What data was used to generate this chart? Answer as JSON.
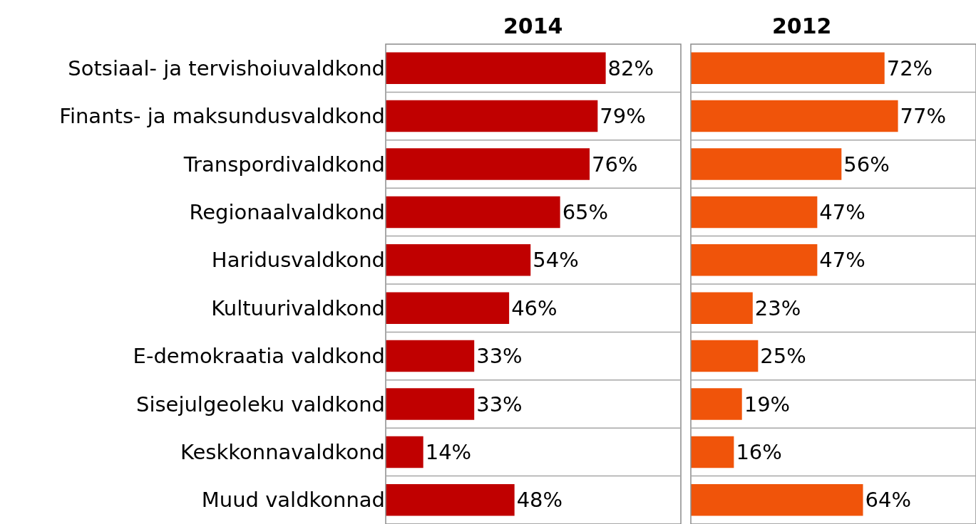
{
  "chart_data": [
    {
      "type": "bar",
      "orientation": "horizontal",
      "title": "2014",
      "categories": [
        "Sotsiaal- ja tervishoiuvaldkond",
        "Finants- ja maksundusvaldkond",
        "Transpordivaldkond",
        "Regionaalvaldkond",
        "Haridusvaldkond",
        "Kultuurivaldkond",
        "E-demokraatia valdkond",
        "Sisejulgeoleku valdkond",
        "Keskkonnavaldkond",
        "Muud valdkonnad"
      ],
      "values": [
        82,
        79,
        76,
        65,
        54,
        46,
        33,
        33,
        14,
        48
      ],
      "value_labels": [
        "82%",
        "79%",
        "76%",
        "65%",
        "54%",
        "46%",
        "33%",
        "33%",
        "14%",
        "48%"
      ],
      "color": "#c00000",
      "xlim": [
        0,
        110
      ],
      "grid": "y",
      "tick_labels": "y"
    },
    {
      "type": "bar",
      "orientation": "horizontal",
      "title": "2012",
      "categories": [
        "Sotsiaal- ja tervishoiuvaldkond",
        "Finants- ja maksundusvaldkond",
        "Transpordivaldkond",
        "Regionaalvaldkond",
        "Haridusvaldkond",
        "Kultuurivaldkond",
        "E-demokraatia valdkond",
        "Sisejulgeoleku valdkond",
        "Keskkonnavaldkond",
        "Muud valdkonnad"
      ],
      "values": [
        72,
        77,
        56,
        47,
        47,
        23,
        25,
        19,
        16,
        64
      ],
      "value_labels": [
        "72%",
        "77%",
        "56%",
        "47%",
        "47%",
        "23%",
        "25%",
        "19%",
        "16%",
        "64%"
      ],
      "color": "#f0540a",
      "xlim": [
        0,
        106
      ],
      "grid": "y",
      "tick_labels": false
    }
  ]
}
